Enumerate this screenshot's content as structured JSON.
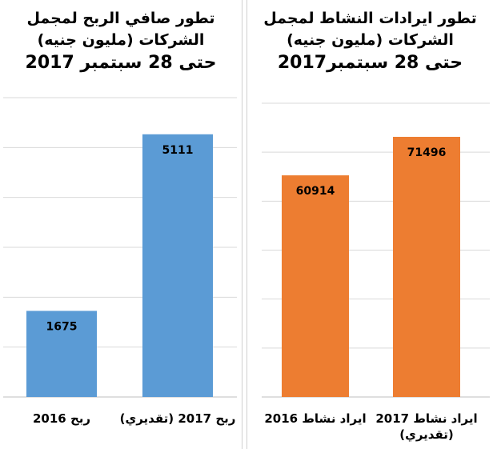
{
  "chart_data": [
    {
      "type": "bar",
      "title_lines": [
        "تطور صافي الربح لمجمل",
        "الشركات (مليون جنيه)",
        "حتى 28 سبتمبر 2017"
      ],
      "categories": [
        [
          "ربح 2016"
        ],
        [
          "ربح 2017 (تقديري)"
        ]
      ],
      "values": [
        1675,
        5111
      ],
      "data_labels": [
        "1675",
        "5111"
      ],
      "ylim": [
        0,
        5824
      ],
      "grid": true,
      "legend": "none",
      "bar_color": "#5b9bd5"
    },
    {
      "type": "bar",
      "title_lines": [
        "تطور ايرادات النشاط لمجمل",
        "الشركات (مليون جنيه)",
        "حتى 28 سبتمبر2017"
      ],
      "categories": [
        [
          "ايراد نشاط 2016"
        ],
        [
          "ايراد نشاط 2017",
          "(تقديري)"
        ]
      ],
      "values": [
        60914,
        71496
      ],
      "data_labels": [
        "60914",
        "71496"
      ],
      "ylim": [
        0,
        80730
      ],
      "grid": true,
      "legend": "none",
      "bar_color": "#ed7d31"
    }
  ]
}
